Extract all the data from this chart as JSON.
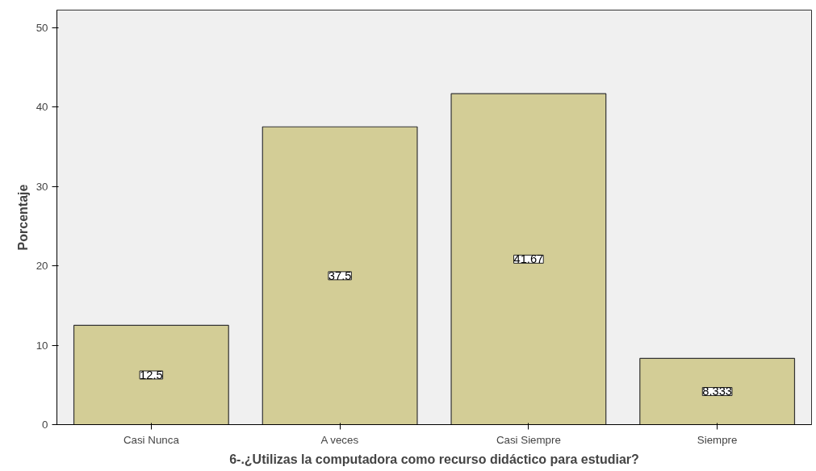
{
  "chart_data": {
    "type": "bar",
    "xlabel": "6-.¿Utilizas la computadora como recurso didáctico para estudiar?",
    "ylabel": "Porcentaje",
    "categories": [
      "Casi Nunca",
      "A veces",
      "Casi Siempre",
      "Siempre"
    ],
    "values": [
      12.5,
      37.5,
      41.67,
      8.333
    ],
    "color": "#d3cd96",
    "data_labels": true,
    "ylim": [
      0,
      52.2
    ],
    "yticks": [
      0,
      10,
      20,
      30,
      40,
      50
    ],
    "grid": false
  }
}
